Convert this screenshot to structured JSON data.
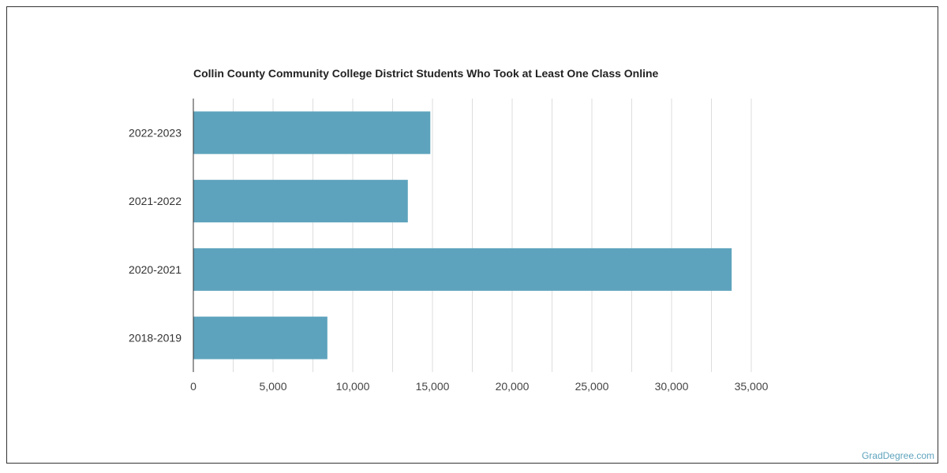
{
  "chart_data": {
    "type": "bar",
    "orientation": "horizontal",
    "title": "Collin County Community College District Students Who Took at Least One Class Online",
    "categories": [
      "2022-2023",
      "2021-2022",
      "2020-2021",
      "2018-2019"
    ],
    "values": [
      14865,
      13455,
      33768,
      8407
    ],
    "xlabel": "",
    "ylabel": "",
    "xlim": [
      0,
      35000
    ],
    "xticks": [
      0,
      5000,
      10000,
      15000,
      20000,
      25000,
      30000,
      35000
    ],
    "xtick_labels": [
      "0",
      "5,000",
      "10,000",
      "15,000",
      "20,000",
      "25,000",
      "30,000",
      "35,000"
    ],
    "grid": true,
    "legend": "none",
    "bar_color": "#5ea3bd"
  },
  "footer": {
    "source": "GradDegree.com"
  }
}
